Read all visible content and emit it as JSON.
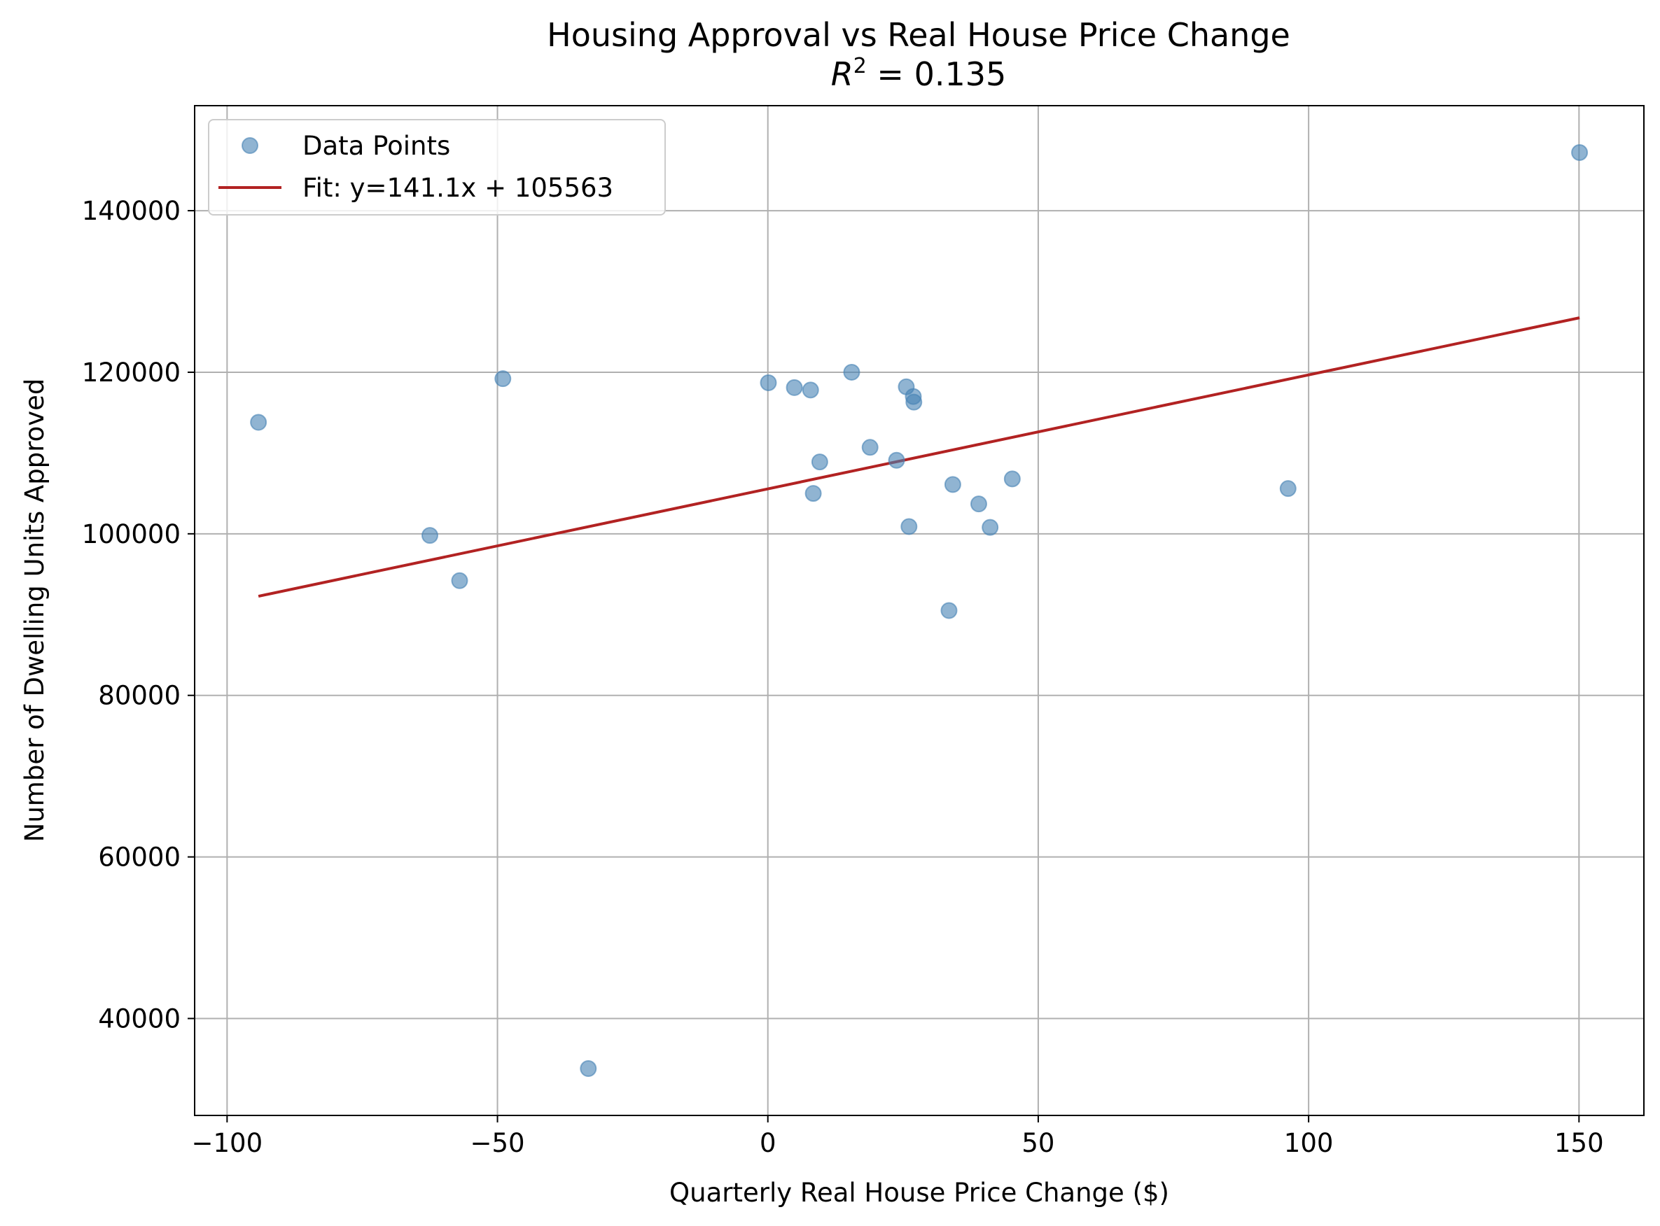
{
  "chart_data": {
    "type": "scatter",
    "title": "Housing Approval vs Real House Price Change",
    "subtitle_prefix": "R",
    "subtitle_superscript": "2",
    "subtitle_suffix": " = 0.135",
    "xlabel": "Quarterly Real House Price Change ($)",
    "ylabel": "Number of Dwelling Units Approved",
    "xlim": [
      -106,
      162
    ],
    "ylim": [
      28000,
      153000
    ],
    "xticks": [
      -100,
      -50,
      0,
      50,
      100,
      150
    ],
    "xtick_labels": [
      "−100",
      "−50",
      "0",
      "50",
      "100",
      "150"
    ],
    "yticks": [
      40000,
      60000,
      80000,
      100000,
      120000,
      140000
    ],
    "ytick_labels": [
      "40000",
      "60000",
      "80000",
      "100000",
      "120000",
      "140000"
    ],
    "grid": true,
    "legend_position": "upper-left",
    "series": [
      {
        "name": "Data Points",
        "kind": "scatter",
        "color": "#4682b4",
        "points": [
          {
            "x": -94.2,
            "y": 113800
          },
          {
            "x": -62.5,
            "y": 99800
          },
          {
            "x": -57.0,
            "y": 94200
          },
          {
            "x": -49.0,
            "y": 119200
          },
          {
            "x": -33.2,
            "y": 33800
          },
          {
            "x": 0.1,
            "y": 118700
          },
          {
            "x": 4.9,
            "y": 118100
          },
          {
            "x": 7.9,
            "y": 117800
          },
          {
            "x": 8.4,
            "y": 105000
          },
          {
            "x": 9.6,
            "y": 108900
          },
          {
            "x": 15.5,
            "y": 120000
          },
          {
            "x": 18.9,
            "y": 110700
          },
          {
            "x": 23.8,
            "y": 109100
          },
          {
            "x": 25.6,
            "y": 118200
          },
          {
            "x": 26.1,
            "y": 100900
          },
          {
            "x": 26.9,
            "y": 117000
          },
          {
            "x": 27.0,
            "y": 116300
          },
          {
            "x": 33.5,
            "y": 90500
          },
          {
            "x": 34.2,
            "y": 106100
          },
          {
            "x": 39.0,
            "y": 103700
          },
          {
            "x": 41.1,
            "y": 100800
          },
          {
            "x": 45.2,
            "y": 106800
          },
          {
            "x": 96.2,
            "y": 105600
          },
          {
            "x": 150.1,
            "y": 147200
          }
        ]
      },
      {
        "name": "Fit: y=141.1x + 105563",
        "kind": "line",
        "color": "#b22222",
        "slope": 141.1,
        "intercept": 105563,
        "x_range": [
          -94.2,
          150.1
        ]
      }
    ]
  }
}
